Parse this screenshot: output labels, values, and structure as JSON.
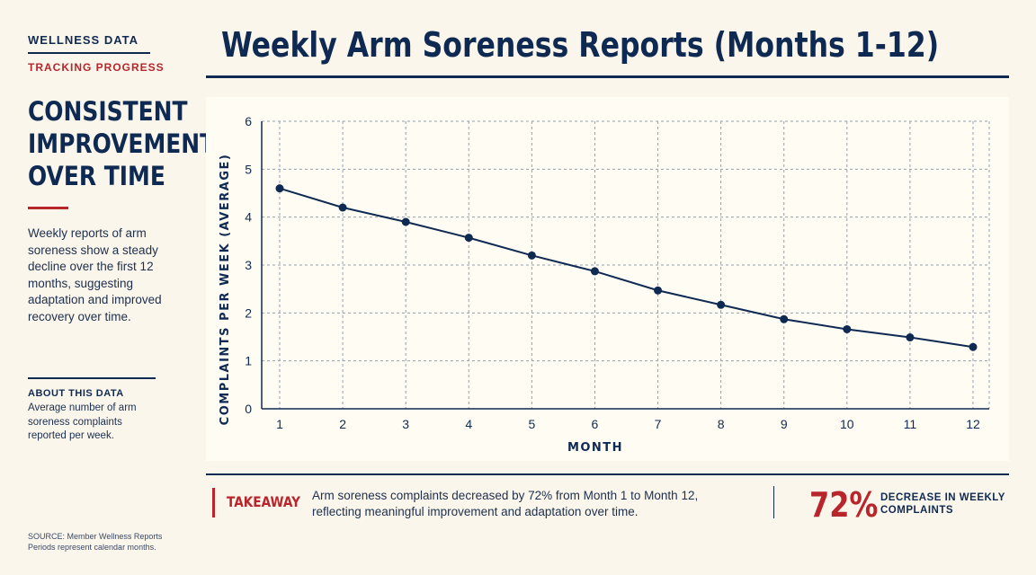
{
  "sidebar": {
    "eyebrow_primary": "WELLNESS DATA",
    "eyebrow_secondary": "TRACKING PROGRESS",
    "headline_lines": [
      "CONSISTENT",
      "IMPROVEMENT",
      "OVER TIME"
    ],
    "description": "Weekly reports of arm soreness show a steady decline over the first 12 months, suggesting adaptation and improved recovery over time.",
    "about_title": "ABOUT THIS DATA",
    "about_text": "Average number of arm soreness complaints reported per week.",
    "source_lines": [
      "SOURCE: Member Wellness Reports",
      "Periods represent calendar months."
    ]
  },
  "takeaway": {
    "label": "TAKEAWAY",
    "text": "Arm soreness complaints decreased by 72% from Month 1 to Month 12, reflecting meaningful improvement and adaptation over time.",
    "stat_value": "72%",
    "stat_label": "DECREASE IN WEEKLY COMPLAINTS"
  },
  "colors": {
    "navy": "#0f2a52",
    "red": "#b8262c",
    "background": "#fbf6ec",
    "panel": "#fffcf4",
    "grid": "#8fa0b8"
  },
  "chart_data": {
    "type": "line",
    "title": "Weekly Arm Soreness Reports (Months 1-12)",
    "xlabel": "MONTH",
    "ylabel": "COMPLAINTS PER WEEK (AVERAGE)",
    "x": [
      1,
      2,
      3,
      4,
      5,
      6,
      7,
      8,
      9,
      10,
      11,
      12
    ],
    "y": [
      4.6,
      4.2,
      3.9,
      3.57,
      3.2,
      2.87,
      2.47,
      2.17,
      1.87,
      1.66,
      1.49,
      1.29
    ],
    "xlim": [
      1,
      12
    ],
    "ylim": [
      0,
      6
    ],
    "yticks": [
      0,
      1,
      2,
      3,
      4,
      5,
      6
    ],
    "grid": true,
    "grid_style": "dashed",
    "markers": true
  }
}
